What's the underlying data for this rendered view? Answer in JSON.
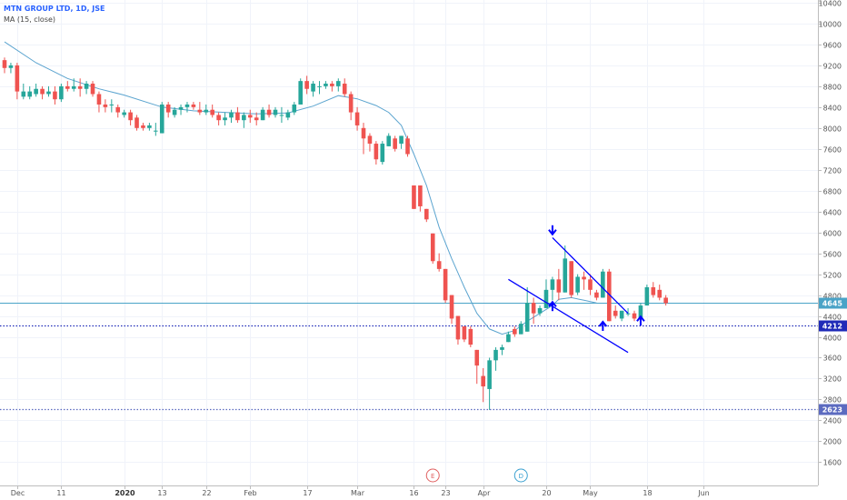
{
  "legend": {
    "title": "MTN GROUP LTD, 1D, JSE",
    "indicator": "MA (15, close)"
  },
  "colors": {
    "up": "#26a69a",
    "down": "#ef5350",
    "ma": "#5ba4cf",
    "channel": "#0000ff",
    "price_line": "#4aa3c7",
    "level_4212": "#1f2bb8",
    "level_2623": "#5c6bc0",
    "event_e": "#e06060",
    "event_d": "#3aa0d0"
  },
  "chart_data": {
    "type": "candlestick",
    "title": "MTN GROUP LTD, 1D, JSE",
    "indicator": "MA (15, close)",
    "y_range": [
      1240,
      10400
    ],
    "y_ticks": [
      1600,
      2000,
      2400,
      2800,
      3200,
      3600,
      4000,
      4400,
      4800,
      5200,
      5600,
      6000,
      6400,
      6800,
      7200,
      7600,
      8000,
      8400,
      8800,
      9200,
      9600,
      10000,
      10400
    ],
    "x_ticks": [
      {
        "label": "Dec",
        "i": 2,
        "bold": false
      },
      {
        "label": "11",
        "i": 9,
        "bold": false
      },
      {
        "label": "2020",
        "i": 19,
        "bold": true
      },
      {
        "label": "13",
        "i": 25,
        "bold": false
      },
      {
        "label": "22",
        "i": 32,
        "bold": false
      },
      {
        "label": "Feb",
        "i": 39,
        "bold": false
      },
      {
        "label": "17",
        "i": 48,
        "bold": false
      },
      {
        "label": "Mar",
        "i": 56,
        "bold": false
      },
      {
        "label": "16",
        "i": 65,
        "bold": false
      },
      {
        "label": "23",
        "i": 70,
        "bold": false
      },
      {
        "label": "Apr",
        "i": 76,
        "bold": false
      },
      {
        "label": "20",
        "i": 86,
        "bold": false
      },
      {
        "label": "May",
        "i": 93,
        "bold": false
      },
      {
        "label": "18",
        "i": 102,
        "bold": false
      },
      {
        "label": "Jun",
        "i": 111,
        "bold": false
      }
    ],
    "x_slots": 120,
    "candles": [
      [
        9300,
        9350,
        9050,
        9150
      ],
      [
        9150,
        9250,
        9050,
        9200
      ],
      [
        9200,
        9250,
        8550,
        8700
      ],
      [
        8600,
        8850,
        8550,
        8700
      ],
      [
        8600,
        8800,
        8550,
        8700
      ],
      [
        8650,
        8850,
        8600,
        8750
      ],
      [
        8750,
        8800,
        8550,
        8650
      ],
      [
        8650,
        8800,
        8600,
        8700
      ],
      [
        8700,
        8800,
        8450,
        8550
      ],
      [
        8550,
        8850,
        8500,
        8800
      ],
      [
        8800,
        8900,
        8700,
        8750
      ],
      [
        8750,
        8950,
        8700,
        8800
      ],
      [
        8800,
        8950,
        8600,
        8750
      ],
      [
        8750,
        8900,
        8650,
        8850
      ],
      [
        8850,
        8900,
        8600,
        8650
      ],
      [
        8650,
        8700,
        8300,
        8450
      ],
      [
        8450,
        8550,
        8300,
        8400
      ],
      [
        8450,
        8550,
        8300,
        8450
      ],
      [
        8400,
        8450,
        8200,
        8300
      ],
      [
        8250,
        8350,
        8200,
        8300
      ],
      [
        8300,
        8350,
        8050,
        8150
      ],
      [
        8200,
        8250,
        7950,
        8000
      ],
      [
        8050,
        8100,
        7950,
        8000
      ],
      [
        8000,
        8100,
        7950,
        8050
      ],
      [
        7950,
        8100,
        7850,
        7950
      ],
      [
        7900,
        8500,
        7900,
        8450
      ],
      [
        8450,
        8500,
        8200,
        8300
      ],
      [
        8250,
        8400,
        8200,
        8350
      ],
      [
        8350,
        8450,
        8250,
        8400
      ],
      [
        8400,
        8500,
        8300,
        8450
      ],
      [
        8450,
        8500,
        8350,
        8400
      ],
      [
        8350,
        8500,
        8250,
        8300
      ],
      [
        8300,
        8450,
        8250,
        8350
      ],
      [
        8350,
        8450,
        8200,
        8250
      ],
      [
        8250,
        8300,
        8050,
        8150
      ],
      [
        8150,
        8300,
        8050,
        8200
      ],
      [
        8200,
        8350,
        8100,
        8300
      ],
      [
        8300,
        8400,
        8100,
        8150
      ],
      [
        8150,
        8300,
        8000,
        8250
      ],
      [
        8250,
        8350,
        8100,
        8200
      ],
      [
        8200,
        8300,
        8050,
        8150
      ],
      [
        8150,
        8400,
        8150,
        8350
      ],
      [
        8350,
        8450,
        8200,
        8250
      ],
      [
        8250,
        8400,
        8200,
        8350
      ],
      [
        8250,
        8400,
        8100,
        8250
      ],
      [
        8200,
        8350,
        8150,
        8300
      ],
      [
        8300,
        8500,
        8250,
        8450
      ],
      [
        8450,
        8950,
        8450,
        8900
      ],
      [
        8900,
        9000,
        8650,
        8750
      ],
      [
        8700,
        8900,
        8600,
        8850
      ],
      [
        8800,
        8900,
        8650,
        8800
      ],
      [
        8800,
        8900,
        8750,
        8850
      ],
      [
        8850,
        8900,
        8700,
        8800
      ],
      [
        8800,
        8950,
        8700,
        8900
      ],
      [
        8850,
        8950,
        8600,
        8650
      ],
      [
        8650,
        8700,
        8150,
        8300
      ],
      [
        8300,
        8400,
        7950,
        8050
      ],
      [
        8000,
        8100,
        7500,
        7800
      ],
      [
        7850,
        7900,
        7550,
        7700
      ],
      [
        7700,
        7750,
        7300,
        7400
      ],
      [
        7350,
        7750,
        7300,
        7700
      ],
      [
        7650,
        7900,
        7650,
        7850
      ],
      [
        7800,
        7850,
        7550,
        7600
      ],
      [
        7700,
        7850,
        7600,
        7850
      ],
      [
        7800,
        7850,
        7450,
        7500
      ],
      [
        6900,
        6900,
        6450,
        6450
      ],
      [
        6900,
        6900,
        6400,
        6500
      ],
      [
        6450,
        6450,
        6200,
        6250
      ],
      [
        5980,
        5980,
        5400,
        5450
      ],
      [
        5450,
        5600,
        5250,
        5300
      ],
      [
        5300,
        5300,
        4650,
        4700
      ],
      [
        4800,
        4800,
        4250,
        4350
      ],
      [
        4400,
        4400,
        3850,
        3950
      ],
      [
        4200,
        4200,
        3900,
        3950
      ],
      [
        4150,
        4200,
        3800,
        3850
      ],
      [
        3750,
        3750,
        3100,
        3450
      ],
      [
        3250,
        3400,
        2750,
        3050
      ],
      [
        3000,
        3600,
        2600,
        3550
      ],
      [
        3550,
        3800,
        3350,
        3750
      ],
      [
        3750,
        3850,
        3650,
        3800
      ],
      [
        3900,
        4100,
        3900,
        4050
      ],
      [
        4150,
        4200,
        4000,
        4050
      ],
      [
        4050,
        4300,
        4050,
        4250
      ],
      [
        4100,
        4950,
        4100,
        4650
      ],
      [
        4650,
        4750,
        4250,
        4450
      ],
      [
        4450,
        4600,
        4400,
        4550
      ],
      [
        4550,
        5100,
        4550,
        4900
      ],
      [
        4900,
        5150,
        4700,
        5100
      ],
      [
        5100,
        5300,
        4700,
        4850
      ],
      [
        4850,
        5750,
        4850,
        5500
      ],
      [
        5450,
        5450,
        4750,
        4800
      ],
      [
        4850,
        5200,
        4800,
        5150
      ],
      [
        5150,
        5250,
        4900,
        5100
      ],
      [
        5100,
        5200,
        4800,
        4900
      ],
      [
        4850,
        4900,
        4700,
        4750
      ],
      [
        4750,
        5300,
        4750,
        5250
      ],
      [
        5250,
        5300,
        4300,
        4300
      ],
      [
        4500,
        4600,
        4350,
        4400
      ],
      [
        4350,
        4500,
        4300,
        4500
      ],
      [
        4450,
        4550,
        4400,
        4450
      ],
      [
        4450,
        4500,
        4300,
        4350
      ],
      [
        4350,
        4650,
        4300,
        4600
      ],
      [
        4600,
        5000,
        4600,
        4950
      ],
      [
        4950,
        5050,
        4750,
        4800
      ],
      [
        4900,
        5000,
        4700,
        4750
      ],
      [
        4750,
        4800,
        4600,
        4645
      ]
    ],
    "ma_line": [
      [
        0,
        9650
      ],
      [
        5,
        9250
      ],
      [
        10,
        8950
      ],
      [
        15,
        8750
      ],
      [
        19,
        8630
      ],
      [
        25,
        8400
      ],
      [
        30,
        8330
      ],
      [
        35,
        8300
      ],
      [
        40,
        8270
      ],
      [
        45,
        8290
      ],
      [
        49,
        8420
      ],
      [
        53,
        8620
      ],
      [
        56,
        8560
      ],
      [
        59,
        8430
      ],
      [
        61,
        8300
      ],
      [
        63,
        8050
      ],
      [
        65,
        7500
      ],
      [
        67,
        6900
      ],
      [
        69,
        6100
      ],
      [
        71,
        5500
      ],
      [
        73,
        4950
      ],
      [
        75,
        4450
      ],
      [
        77,
        4150
      ],
      [
        79,
        4050
      ],
      [
        81,
        4120
      ],
      [
        83,
        4300
      ],
      [
        85,
        4450
      ],
      [
        87,
        4600
      ],
      [
        88,
        4720
      ],
      [
        90,
        4750
      ],
      [
        92,
        4700
      ],
      [
        94,
        4650
      ]
    ],
    "channel_upper": {
      "from": [
        87,
        5900
      ],
      "to": [
        99,
        4450
      ]
    },
    "channel_lower": {
      "from": [
        80,
        5100
      ],
      "to": [
        99,
        3700
      ]
    },
    "arrows": [
      {
        "dir": "down",
        "i": 87,
        "value": 6050
      },
      {
        "dir": "up",
        "i": 87,
        "value": 4580
      },
      {
        "dir": "up",
        "i": 95,
        "value": 4200
      },
      {
        "dir": "up",
        "i": 101,
        "value": 4300
      }
    ],
    "price_levels": [
      {
        "value": 4645,
        "label": "4645",
        "style": "solid",
        "color_key": "price_line"
      },
      {
        "value": 4212,
        "label": "4212",
        "style": "dotted",
        "color_key": "level_4212"
      },
      {
        "value": 2623,
        "label": "2623",
        "style": "dotted",
        "color_key": "level_2623"
      }
    ],
    "events": [
      {
        "label": "E",
        "i": 68,
        "color_key": "event_e"
      },
      {
        "label": "D",
        "i": 82,
        "color_key": "event_d"
      }
    ]
  }
}
